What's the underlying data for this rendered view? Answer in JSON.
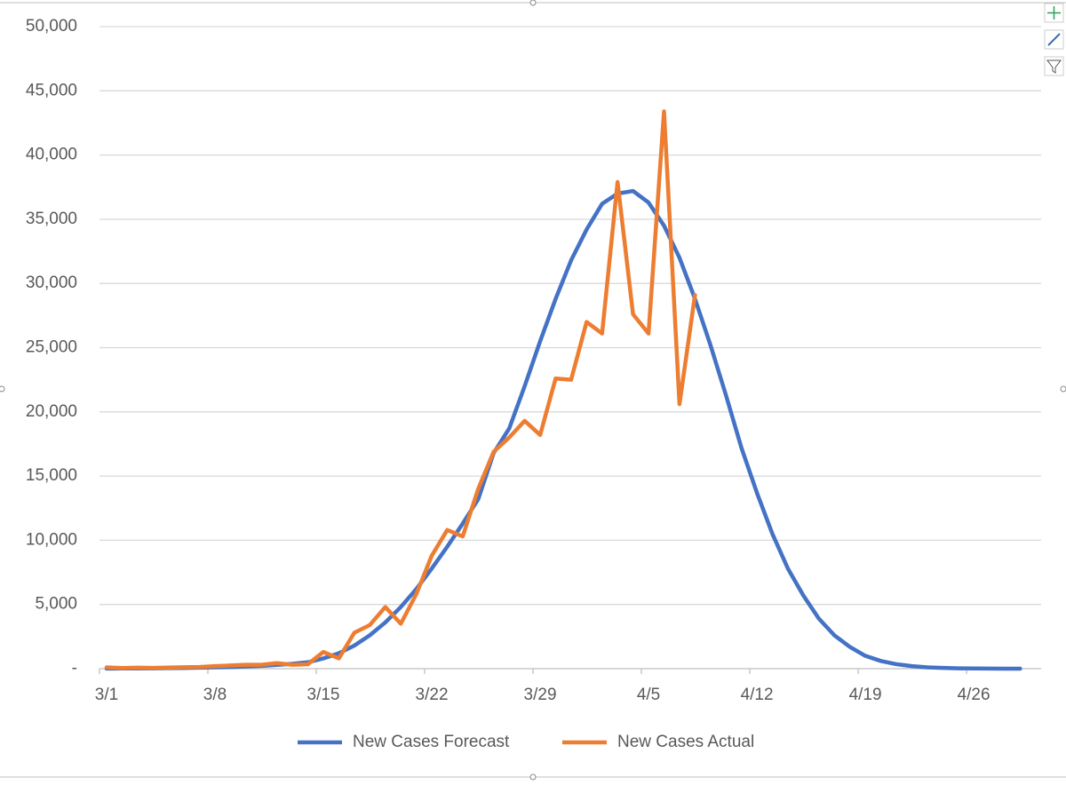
{
  "chart_data": {
    "type": "line",
    "categories": [
      "3/1",
      null,
      null,
      null,
      null,
      null,
      null,
      "3/8",
      null,
      null,
      null,
      null,
      null,
      null,
      "3/15",
      null,
      null,
      null,
      null,
      null,
      null,
      "3/22",
      null,
      null,
      null,
      null,
      null,
      null,
      "3/29",
      null,
      null,
      null,
      null,
      null,
      null,
      "4/5",
      null,
      null,
      null,
      null,
      null,
      null,
      "4/12",
      null,
      null,
      null,
      null,
      null,
      null,
      "4/19",
      null,
      null,
      null,
      null,
      null,
      null,
      "4/26",
      null,
      null,
      null
    ],
    "series": [
      {
        "name": "New Cases Forecast",
        "color": "#4472c4",
        "values": [
          10,
          15,
          20,
          30,
          40,
          55,
          75,
          100,
          130,
          170,
          220,
          290,
          380,
          500,
          800,
          1200,
          1800,
          2600,
          3600,
          4800,
          6200,
          7800,
          9500,
          11300,
          13200,
          16800,
          18700,
          22000,
          25500,
          28800,
          31800,
          34200,
          36200,
          37000,
          37200,
          36300,
          34500,
          32000,
          28800,
          25200,
          21300,
          17200,
          13700,
          10500,
          7800,
          5700,
          3900,
          2600,
          1700,
          1000,
          600,
          350,
          200,
          100,
          60,
          30,
          15,
          8,
          4,
          2
        ]
      },
      {
        "name": "New Cases Actual",
        "color": "#ed7d31",
        "values": [
          100,
          50,
          80,
          60,
          90,
          110,
          130,
          200,
          250,
          300,
          300,
          430,
          300,
          350,
          1300,
          800,
          2800,
          3400,
          4800,
          3500,
          5800,
          8800,
          10800,
          10300,
          14000,
          16900,
          18000,
          19300,
          18200,
          22600,
          22500,
          27000,
          26100,
          37900,
          27600,
          26100,
          43400,
          20600,
          29100,
          null,
          null,
          null,
          null,
          null,
          null,
          null,
          null,
          null,
          null,
          null,
          null,
          null,
          null,
          null,
          null,
          null,
          null,
          null,
          null,
          null
        ]
      }
    ],
    "ylim": [
      0,
      50000
    ],
    "yticks": [
      {
        "value": 0,
        "label": "-"
      },
      {
        "value": 5000,
        "label": "5,000"
      },
      {
        "value": 10000,
        "label": "10,000"
      },
      {
        "value": 15000,
        "label": "15,000"
      },
      {
        "value": 20000,
        "label": "20,000"
      },
      {
        "value": 25000,
        "label": "25,000"
      },
      {
        "value": 30000,
        "label": "30,000"
      },
      {
        "value": 35000,
        "label": "35,000"
      },
      {
        "value": 40000,
        "label": "40,000"
      },
      {
        "value": 45000,
        "label": "45,000"
      },
      {
        "value": 50000,
        "label": "50,000"
      }
    ],
    "grid": true,
    "legend": "bottom"
  }
}
